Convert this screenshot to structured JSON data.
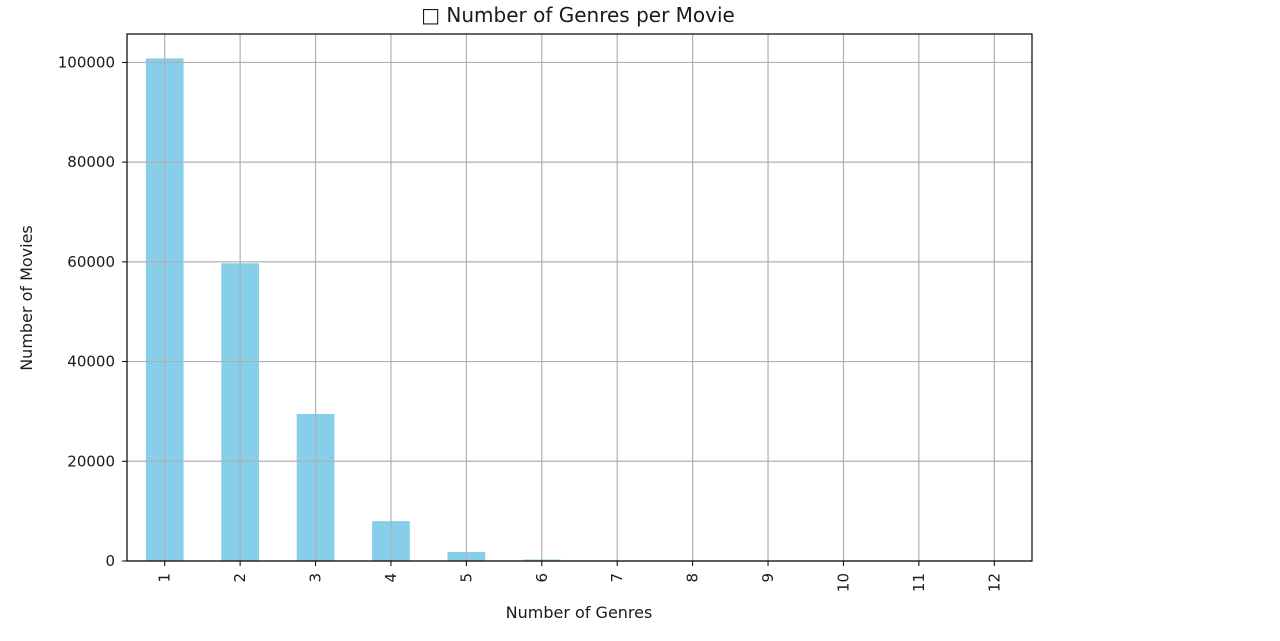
{
  "chart_data": {
    "type": "bar",
    "title": "□ Number of Genres per Movie",
    "xlabel": "Number of Genres",
    "ylabel": "Number of Movies",
    "categories": [
      "1",
      "2",
      "3",
      "4",
      "5",
      "6",
      "7",
      "8",
      "9",
      "10",
      "11",
      "12"
    ],
    "values": [
      100800,
      59700,
      29500,
      8000,
      1800,
      300,
      50,
      10,
      5,
      2,
      1,
      1
    ],
    "ylim": [
      0,
      105700
    ],
    "yticks": [
      0,
      20000,
      40000,
      60000,
      80000,
      100000
    ],
    "grid": true,
    "bar_color": "#87ceeb",
    "grid_color": "#b0b0b0"
  }
}
